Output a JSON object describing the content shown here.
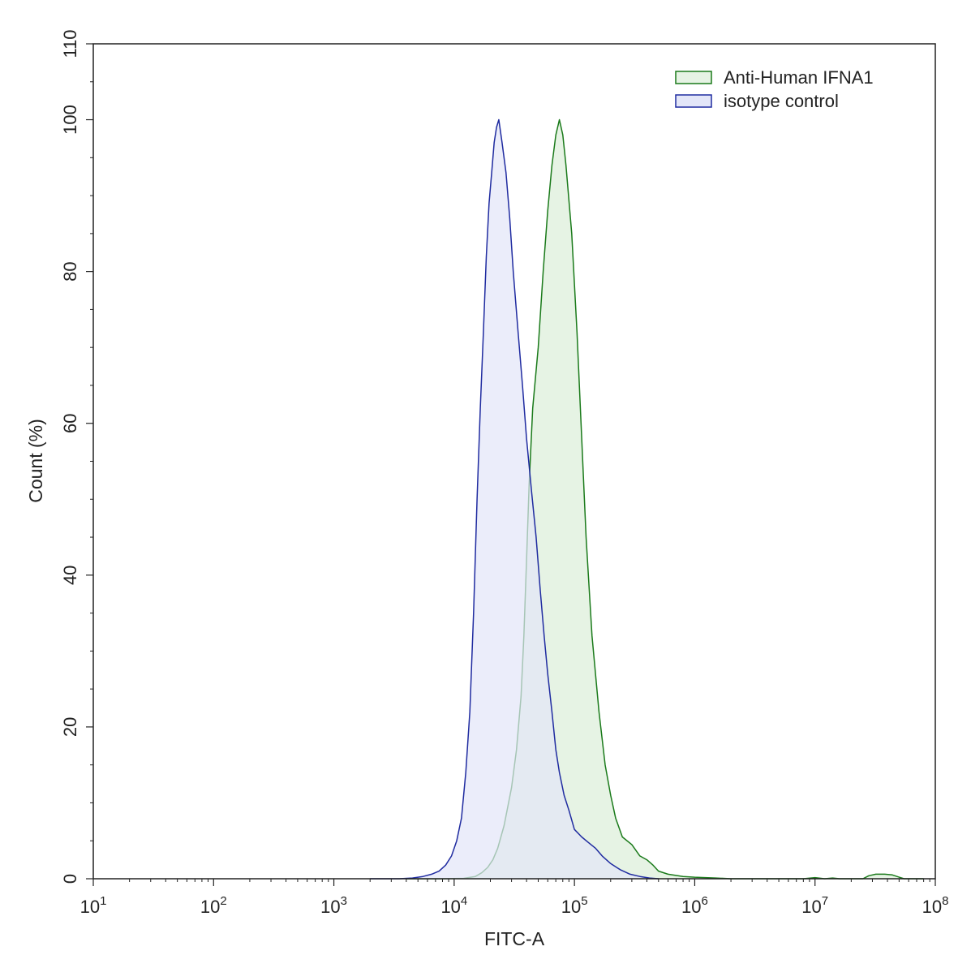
{
  "chart_data": {
    "type": "area",
    "title": "",
    "xlabel": "FITC-A",
    "ylabel": "Count  (%)",
    "x_scale": "log10",
    "xlim": [
      10,
      100000000
    ],
    "ylim": [
      0,
      110
    ],
    "x_ticks": [
      {
        "base": "10",
        "exp": "1",
        "value": 10
      },
      {
        "base": "10",
        "exp": "2",
        "value": 100
      },
      {
        "base": "10",
        "exp": "3",
        "value": 1000
      },
      {
        "base": "10",
        "exp": "4",
        "value": 10000
      },
      {
        "base": "10",
        "exp": "5",
        "value": 100000
      },
      {
        "base": "10",
        "exp": "6",
        "value": 1000000
      },
      {
        "base": "10",
        "exp": "7",
        "value": 10000000
      },
      {
        "base": "10",
        "exp": "8",
        "value": 100000000
      }
    ],
    "y_ticks": [
      "0",
      "20",
      "40",
      "60",
      "80",
      "100",
      "110"
    ],
    "y_tick_values": [
      0,
      20,
      40,
      60,
      80,
      100,
      110
    ],
    "legend_position": "top-right",
    "grid": false,
    "series": [
      {
        "name": "Anti-Human IFNA1",
        "stroke": "#1a7a1a",
        "fill": "#e6f3e4",
        "points": [
          [
            4000,
            0
          ],
          [
            8000,
            0
          ],
          [
            12000,
            0.05
          ],
          [
            15000,
            0.3
          ],
          [
            17000,
            0.8
          ],
          [
            19000,
            1.5
          ],
          [
            21000,
            2.5
          ],
          [
            23000,
            4
          ],
          [
            26000,
            7
          ],
          [
            30000,
            12
          ],
          [
            33000,
            17
          ],
          [
            36000,
            24
          ],
          [
            38000,
            32
          ],
          [
            40000,
            42
          ],
          [
            42000,
            52
          ],
          [
            45000,
            62
          ],
          [
            50000,
            70
          ],
          [
            55000,
            80
          ],
          [
            60000,
            88
          ],
          [
            65000,
            94
          ],
          [
            70000,
            98
          ],
          [
            75000,
            100
          ],
          [
            80000,
            98
          ],
          [
            85000,
            94
          ],
          [
            95000,
            85
          ],
          [
            105000,
            72
          ],
          [
            115000,
            58
          ],
          [
            125000,
            45
          ],
          [
            140000,
            32
          ],
          [
            160000,
            22
          ],
          [
            180000,
            15
          ],
          [
            200000,
            11
          ],
          [
            220000,
            8
          ],
          [
            250000,
            5.5
          ],
          [
            300000,
            4.5
          ],
          [
            350000,
            3
          ],
          [
            400000,
            2.5
          ],
          [
            450000,
            1.8
          ],
          [
            500000,
            1
          ],
          [
            600000,
            0.6
          ],
          [
            800000,
            0.3
          ],
          [
            1000000,
            0.2
          ],
          [
            1500000,
            0.1
          ],
          [
            2000000,
            0
          ],
          [
            8000000,
            0
          ],
          [
            10000000,
            0.15
          ],
          [
            12000000,
            0
          ],
          [
            14000000,
            0.1
          ],
          [
            16000000,
            0
          ],
          [
            25000000,
            0
          ],
          [
            28000000,
            0.4
          ],
          [
            32000000,
            0.6
          ],
          [
            38000000,
            0.6
          ],
          [
            44000000,
            0.5
          ],
          [
            50000000,
            0.2
          ],
          [
            55000000,
            0
          ],
          [
            80000000,
            0
          ]
        ]
      },
      {
        "name": "isotype control",
        "stroke": "#1f2ba0",
        "fill": "#e3e6f8",
        "points": [
          [
            2000,
            0
          ],
          [
            3500,
            0
          ],
          [
            4500,
            0.1
          ],
          [
            5500,
            0.3
          ],
          [
            6500,
            0.6
          ],
          [
            7500,
            1
          ],
          [
            8500,
            1.8
          ],
          [
            9500,
            3
          ],
          [
            10500,
            5
          ],
          [
            11500,
            8
          ],
          [
            12500,
            14
          ],
          [
            13500,
            22
          ],
          [
            14500,
            35
          ],
          [
            15500,
            50
          ],
          [
            16500,
            62
          ],
          [
            17500,
            72
          ],
          [
            18500,
            82
          ],
          [
            19500,
            89
          ],
          [
            20500,
            93
          ],
          [
            21500,
            97
          ],
          [
            22500,
            99
          ],
          [
            23500,
            100
          ],
          [
            25000,
            97
          ],
          [
            27000,
            93
          ],
          [
            29000,
            87
          ],
          [
            31000,
            80
          ],
          [
            34000,
            72
          ],
          [
            37000,
            65
          ],
          [
            40000,
            58
          ],
          [
            44000,
            51
          ],
          [
            48000,
            45
          ],
          [
            52000,
            38
          ],
          [
            56000,
            32
          ],
          [
            60000,
            27
          ],
          [
            65000,
            22
          ],
          [
            70000,
            17
          ],
          [
            75000,
            14
          ],
          [
            82000,
            11
          ],
          [
            90000,
            9
          ],
          [
            100000,
            6.5
          ],
          [
            115000,
            5.5
          ],
          [
            130000,
            4.8
          ],
          [
            150000,
            4
          ],
          [
            170000,
            3
          ],
          [
            200000,
            2
          ],
          [
            240000,
            1.2
          ],
          [
            290000,
            0.6
          ],
          [
            350000,
            0.3
          ],
          [
            420000,
            0.1
          ],
          [
            500000,
            0
          ]
        ]
      }
    ]
  }
}
